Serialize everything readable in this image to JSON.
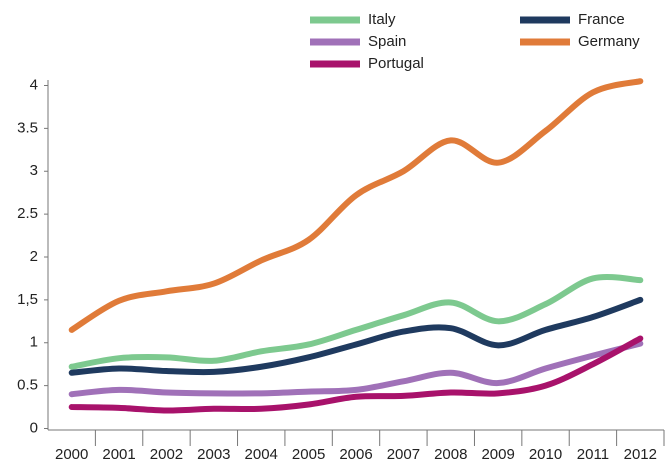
{
  "chart_data": {
    "type": "line",
    "categories": [
      "2000",
      "2001",
      "2002",
      "2003",
      "2004",
      "2005",
      "2006",
      "2007",
      "2008",
      "2009",
      "2010",
      "2011",
      "2012"
    ],
    "series": [
      {
        "name": "Italy",
        "color": "#7dc98f",
        "values": [
          0.72,
          0.82,
          0.83,
          0.79,
          0.9,
          0.98,
          1.15,
          1.32,
          1.47,
          1.25,
          1.45,
          1.75,
          1.73
        ]
      },
      {
        "name": "Spain",
        "color": "#a071b8",
        "values": [
          0.4,
          0.45,
          0.42,
          0.41,
          0.41,
          0.43,
          0.45,
          0.55,
          0.65,
          0.53,
          0.7,
          0.85,
          0.99
        ]
      },
      {
        "name": "Portugal",
        "color": "#a8126b",
        "values": [
          0.25,
          0.24,
          0.21,
          0.23,
          0.23,
          0.28,
          0.37,
          0.38,
          0.42,
          0.41,
          0.5,
          0.75,
          1.05
        ]
      },
      {
        "name": "France",
        "color": "#1f3a5f",
        "values": [
          0.65,
          0.7,
          0.67,
          0.66,
          0.72,
          0.83,
          0.98,
          1.13,
          1.17,
          0.97,
          1.15,
          1.3,
          1.5
        ]
      },
      {
        "name": "Germany",
        "color": "#e07b39",
        "values": [
          1.15,
          1.49,
          1.6,
          1.69,
          1.96,
          2.2,
          2.72,
          3.0,
          3.36,
          3.1,
          3.47,
          3.92,
          4.05
        ]
      }
    ],
    "ylim": [
      0,
      4
    ],
    "yticks": [
      0,
      0.5,
      1,
      {
        "value": 1.5,
        "label": "1,5"
      },
      2,
      2.5,
      3,
      3.5,
      4
    ],
    "grid": false
  }
}
